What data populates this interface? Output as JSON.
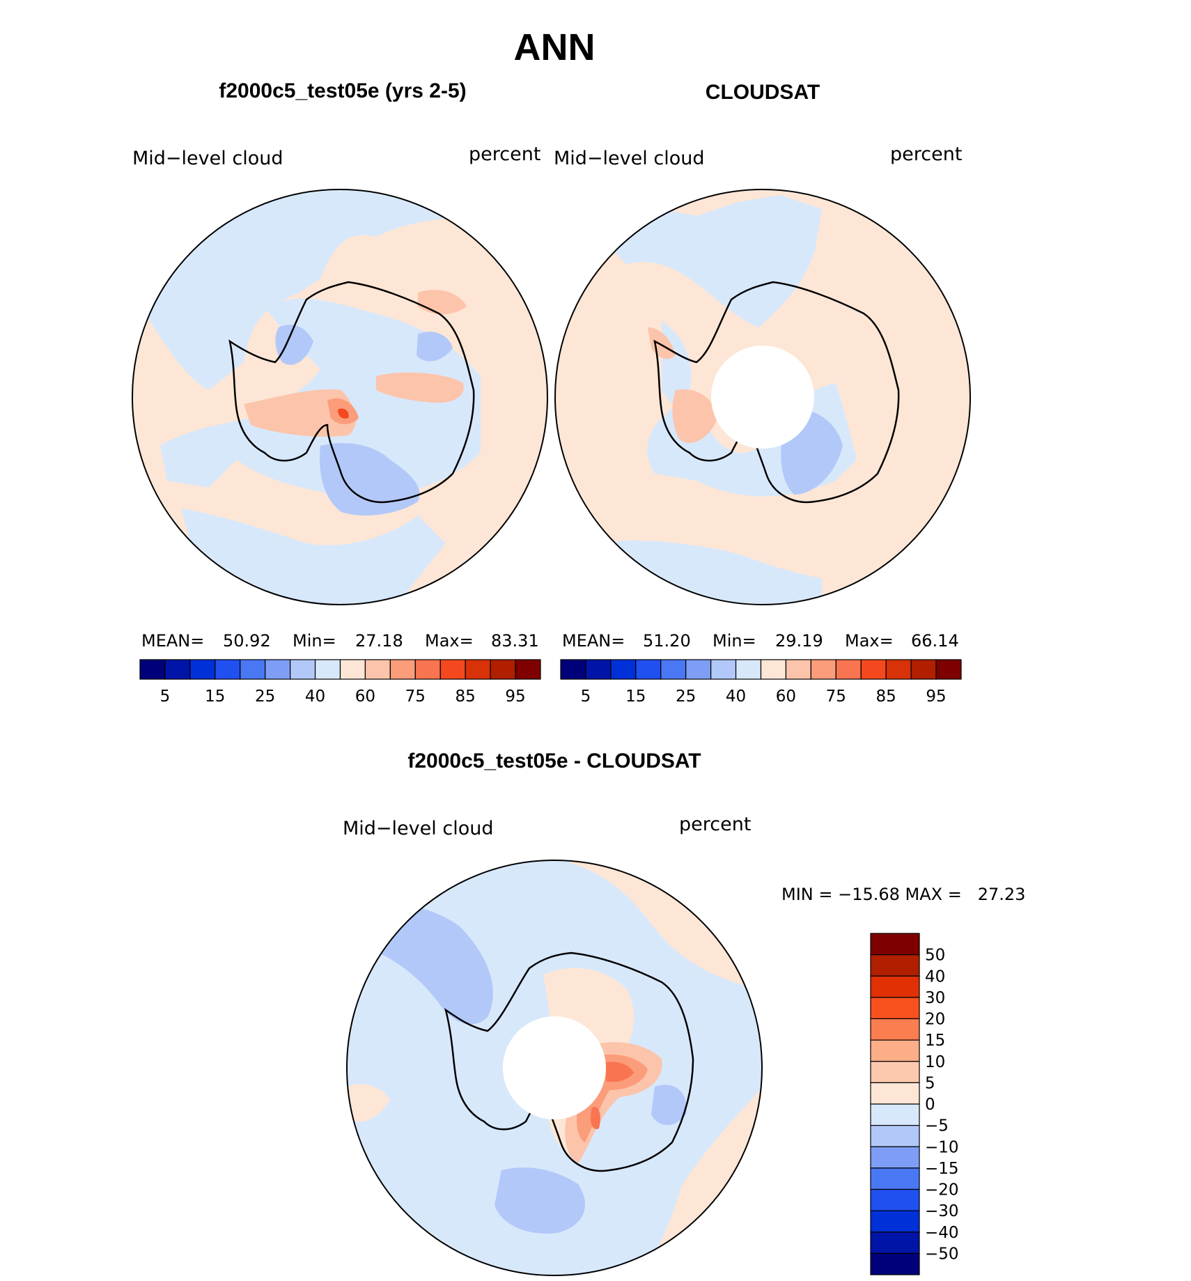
{
  "title": "ANN",
  "panels": [
    {
      "title": "f2000c5_test05e (yrs 2-5)",
      "variable": "Mid−level cloud",
      "units": "percent",
      "stats": {
        "mean_label": "MEAN=",
        "mean": "50.92",
        "min_label": "Min=",
        "min": "27.18",
        "max_label": "Max=",
        "max": "83.31"
      }
    },
    {
      "title": "CLOUDSAT",
      "variable": "Mid−level cloud",
      "units": "percent",
      "stats": {
        "mean_label": "MEAN=",
        "mean": "51.20",
        "min_label": "Min=",
        "min": "29.19",
        "max_label": "Max=",
        "max": "66.14"
      }
    }
  ],
  "abs_colorbar": {
    "colors": [
      "#00007a",
      "#0014a8",
      "#0030d8",
      "#2050f0",
      "#4a78f5",
      "#7e9ef5",
      "#b2c8f8",
      "#d8e8fb",
      "#fde6d6",
      "#fcc4aa",
      "#fb9c7a",
      "#f97450",
      "#f4481e",
      "#d83208",
      "#b02000",
      "#7e0000"
    ],
    "labels": [
      "5",
      "15",
      "25",
      "40",
      "60",
      "75",
      "85",
      "95"
    ]
  },
  "diff_panel": {
    "title": "f2000c5_test05e - CLOUDSAT",
    "variable": "Mid−level cloud",
    "units": "percent",
    "minmax": "MIN = −15.68 MAX =   27.23"
  },
  "diff_colorbar": {
    "colors": [
      "#7e0000",
      "#b02000",
      "#e03004",
      "#f8501e",
      "#fb7e50",
      "#fcae88",
      "#fcc8ae",
      "#fde6d6",
      "#d8e8fb",
      "#b2c8f8",
      "#7e9ef5",
      "#4a78f5",
      "#2050f0",
      "#0030d8",
      "#0014a8",
      "#00007a"
    ],
    "labels": [
      "50",
      "40",
      "30",
      "20",
      "15",
      "10",
      "5",
      "0",
      "−5",
      "−10",
      "−15",
      "−20",
      "−30",
      "−40",
      "−50"
    ]
  },
  "map_colors": {
    "light_blue": "#d8e8fb",
    "mid_blue": "#b2c8f8",
    "blue": "#7e9ef5",
    "light_orange": "#fde6d6",
    "orange": "#fcc4aa",
    "dark_orange": "#fb9c7a",
    "red": "#f4481e"
  }
}
